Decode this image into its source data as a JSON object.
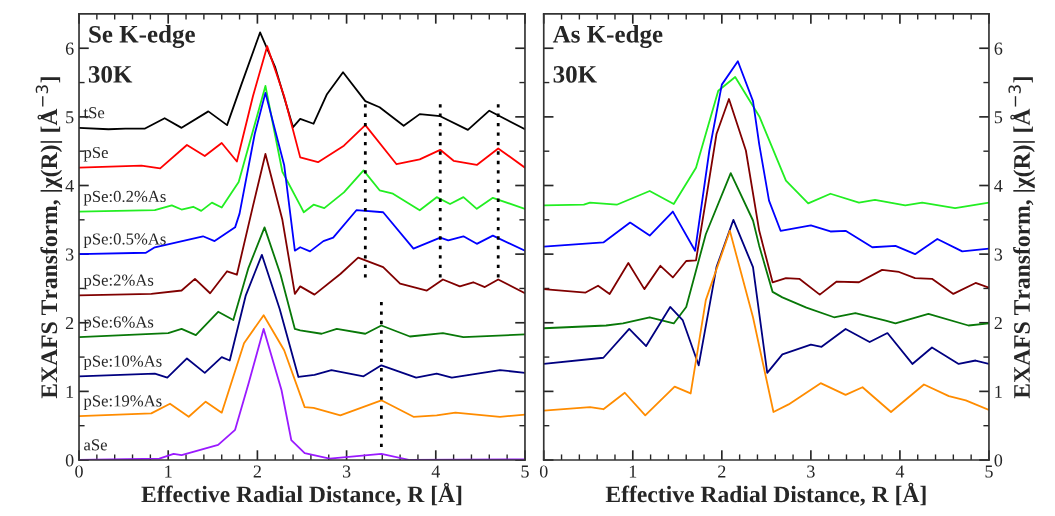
{
  "chart_data": [
    {
      "type": "line",
      "title": "Se K-edge",
      "subtitle": "30K",
      "xlabel": "Effective Radial Distance, R [Å]",
      "ylabel": "EXAFS Transform, |χ(R)| [Å$^{−3}$]",
      "xlim": [
        0,
        5
      ],
      "xticks": [
        0,
        {
          "value": 0.2,
          "label": null
        },
        {
          "value": 0.4,
          "label": null
        },
        {
          "value": 0.6,
          "label": null
        },
        {
          "value": 0.8,
          "label": null
        },
        1,
        {
          "value": 1.2,
          "label": null
        },
        {
          "value": 1.4,
          "label": null
        },
        {
          "value": 1.6,
          "label": null
        },
        {
          "value": 1.8,
          "label": null
        },
        2,
        {
          "value": 2.2,
          "label": null
        },
        {
          "value": 2.4,
          "label": null
        },
        {
          "value": 2.6,
          "label": null
        },
        {
          "value": 2.8,
          "label": null
        },
        3,
        {
          "value": 3.2,
          "label": null
        },
        {
          "value": 3.4,
          "label": null
        },
        {
          "value": 3.6,
          "label": null
        },
        {
          "value": 3.8,
          "label": null
        },
        4,
        {
          "value": 4.2,
          "label": null
        },
        {
          "value": 4.4,
          "label": null
        },
        {
          "value": 4.6,
          "label": null
        },
        {
          "value": 4.8,
          "label": null
        },
        5
      ],
      "ylim": [
        0,
        6.5
      ],
      "yticks": [
        0,
        {
          "value": 0.5,
          "label": null
        },
        1,
        {
          "value": 1.5,
          "label": null
        },
        2,
        {
          "value": 2.5,
          "label": null
        },
        3,
        {
          "value": 3.5,
          "label": null
        },
        4,
        {
          "value": 4.5,
          "label": null
        },
        5,
        {
          "value": 5.5,
          "label": null
        },
        6
      ],
      "marker": "none",
      "line_style": "solid",
      "series": [
        {
          "name": "tSe",
          "color": "#000000",
          "x": [
            0,
            0.33,
            0.52,
            0.74,
            0.96,
            1.15,
            1.45,
            1.66,
            1.82,
            2.03,
            2.2,
            2.4,
            2.48,
            2.63,
            2.78,
            2.96,
            3.21,
            3.37,
            3.64,
            3.82,
            4.05,
            4.36,
            4.6,
            5.0
          ],
          "values": [
            4.84,
            4.82,
            4.83,
            4.83,
            4.98,
            4.84,
            5.08,
            4.88,
            5.47,
            6.23,
            5.72,
            4.85,
            4.97,
            4.9,
            5.33,
            5.65,
            5.23,
            5.14,
            4.87,
            5.04,
            5.01,
            4.81,
            5.09,
            4.82
          ]
        },
        {
          "name": "pSe",
          "color": "#ff0000",
          "x": [
            0,
            0.7,
            0.91,
            1.21,
            1.41,
            1.6,
            1.77,
            1.95,
            2.11,
            2.3,
            2.48,
            2.68,
            2.97,
            3.21,
            3.56,
            3.82,
            4.05,
            4.2,
            4.46,
            4.7,
            5.0
          ],
          "values": [
            4.26,
            4.29,
            4.25,
            4.59,
            4.43,
            4.62,
            4.35,
            5.3,
            6.03,
            5.3,
            4.41,
            4.34,
            4.58,
            4.88,
            4.31,
            4.38,
            4.52,
            4.36,
            4.3,
            4.54,
            4.26
          ]
        },
        {
          "name": "pSe:0.2%As",
          "color": "#22ee22",
          "x": [
            0,
            0.85,
            1.04,
            1.15,
            1.28,
            1.37,
            1.49,
            1.6,
            1.79,
            2.09,
            2.28,
            2.48,
            2.52,
            2.63,
            2.75,
            2.97,
            3.19,
            3.37,
            3.52,
            3.82,
            4.01,
            4.16,
            4.31,
            4.46,
            4.64,
            5.0
          ],
          "values": [
            3.62,
            3.64,
            3.71,
            3.65,
            3.69,
            3.63,
            3.75,
            3.68,
            4.05,
            5.45,
            4.2,
            3.71,
            3.61,
            3.72,
            3.67,
            3.9,
            4.22,
            3.93,
            3.88,
            3.64,
            3.83,
            3.73,
            3.83,
            3.66,
            3.82,
            3.66
          ]
        },
        {
          "name": "pSe:0.5%As",
          "color": "#0000ff",
          "x": [
            0,
            0.75,
            0.85,
            1.39,
            1.52,
            1.75,
            1.8,
            1.97,
            2.09,
            2.3,
            2.42,
            2.48,
            2.59,
            2.74,
            2.85,
            3.11,
            3.41,
            3.75,
            4.05,
            4.14,
            4.31,
            4.46,
            4.64,
            5.0
          ],
          "values": [
            3.0,
            3.02,
            3.1,
            3.26,
            3.19,
            3.39,
            3.59,
            4.75,
            5.35,
            4.3,
            3.05,
            3.1,
            3.04,
            3.19,
            3.24,
            3.64,
            3.61,
            3.08,
            3.24,
            3.2,
            3.26,
            3.15,
            3.27,
            3.05
          ]
        },
        {
          "name": "pSe:2%As",
          "color": "#800000",
          "x": [
            0,
            0.81,
            1.15,
            1.3,
            1.47,
            1.66,
            1.77,
            1.95,
            2.09,
            2.28,
            2.42,
            2.48,
            2.64,
            2.93,
            3.13,
            3.41,
            3.6,
            3.9,
            4.08,
            4.27,
            4.42,
            4.55,
            4.7,
            5.0
          ],
          "values": [
            2.4,
            2.42,
            2.47,
            2.64,
            2.43,
            2.75,
            2.7,
            3.7,
            4.46,
            3.5,
            2.42,
            2.53,
            2.41,
            2.71,
            2.95,
            2.81,
            2.57,
            2.47,
            2.63,
            2.53,
            2.59,
            2.52,
            2.63,
            2.43
          ]
        },
        {
          "name": "pSe:6%As",
          "color": "#087808",
          "x": [
            0,
            1.0,
            1.15,
            1.31,
            1.56,
            1.73,
            1.9,
            2.08,
            2.26,
            2.42,
            2.48,
            2.72,
            2.89,
            3.21,
            3.39,
            3.71,
            4.08,
            4.31,
            5.0
          ],
          "values": [
            1.79,
            1.85,
            1.91,
            1.82,
            2.16,
            2.04,
            2.8,
            3.39,
            2.7,
            1.91,
            1.89,
            1.84,
            1.91,
            1.84,
            1.96,
            1.8,
            1.85,
            1.79,
            1.83
          ]
        },
        {
          "name": "pSe:10%As",
          "color": "#000080",
          "x": [
            0,
            0.85,
            0.99,
            1.21,
            1.41,
            1.6,
            1.69,
            1.87,
            2.05,
            2.25,
            2.46,
            2.64,
            2.83,
            3.19,
            3.39,
            3.78,
            4.01,
            4.18,
            4.72,
            5.0
          ],
          "values": [
            1.22,
            1.26,
            1.2,
            1.48,
            1.27,
            1.5,
            1.45,
            2.4,
            2.99,
            2.2,
            1.21,
            1.24,
            1.31,
            1.22,
            1.38,
            1.2,
            1.26,
            1.2,
            1.31,
            1.27
          ]
        },
        {
          "name": "pSe:19%As",
          "color": "#ff8c00",
          "x": [
            0,
            0.81,
            1.02,
            1.23,
            1.42,
            1.6,
            1.85,
            2.07,
            2.3,
            2.53,
            2.63,
            2.93,
            3.39,
            3.75,
            4.01,
            4.22,
            4.72,
            5.0
          ],
          "values": [
            0.64,
            0.68,
            0.82,
            0.63,
            0.85,
            0.69,
            1.7,
            2.11,
            1.6,
            0.77,
            0.76,
            0.65,
            0.87,
            0.63,
            0.65,
            0.69,
            0.63,
            0.66
          ]
        },
        {
          "name": "aSe",
          "color": "#9a1aff",
          "x": [
            0,
            0.9,
            1.06,
            1.15,
            1.28,
            1.56,
            1.75,
            1.9,
            2.07,
            2.27,
            2.38,
            2.53,
            2.81,
            3.39,
            3.71,
            5.0
          ],
          "values": [
            0.0,
            0.02,
            0.09,
            0.07,
            0.12,
            0.22,
            0.44,
            1.11,
            1.91,
            1.02,
            0.29,
            0.1,
            0.02,
            0.09,
            0.0,
            0.01
          ]
        },
        {
          "color": "#000000",
          "line_style": "dotted",
          "x": [
            3.21,
            3.21
          ],
          "values": [
            2.66,
            5.23
          ]
        },
        {
          "color": "#000000",
          "line_style": "dotted",
          "x": [
            4.05,
            4.05
          ],
          "values": [
            2.66,
            5.23
          ]
        },
        {
          "color": "#000000",
          "line_style": "dotted",
          "x": [
            4.7,
            4.7
          ],
          "values": [
            2.66,
            5.23
          ]
        },
        {
          "color": "#000000",
          "line_style": "dotted",
          "x": [
            3.39,
            3.39
          ],
          "values": [
            0.19,
            2.35
          ]
        }
      ]
    },
    {
      "type": "line",
      "title": "As K-edge",
      "subtitle": "30K",
      "xlabel": "Effective Radial Distance, R [Å]",
      "y2label": "EXAFS Transform, |χ(R)| [Å$^{−3}$]",
      "xlim": [
        0,
        5
      ],
      "xticks": [
        0,
        {
          "value": 0.2,
          "label": null
        },
        {
          "value": 0.4,
          "label": null
        },
        {
          "value": 0.6,
          "label": null
        },
        {
          "value": 0.8,
          "label": null
        },
        1,
        {
          "value": 1.2,
          "label": null
        },
        {
          "value": 1.4,
          "label": null
        },
        {
          "value": 1.6,
          "label": null
        },
        {
          "value": 1.8,
          "label": null
        },
        2,
        {
          "value": 2.2,
          "label": null
        },
        {
          "value": 2.4,
          "label": null
        },
        {
          "value": 2.6,
          "label": null
        },
        {
          "value": 2.8,
          "label": null
        },
        3,
        {
          "value": 3.2,
          "label": null
        },
        {
          "value": 3.4,
          "label": null
        },
        {
          "value": 3.6,
          "label": null
        },
        {
          "value": 3.8,
          "label": null
        },
        4,
        {
          "value": 4.2,
          "label": null
        },
        {
          "value": 4.4,
          "label": null
        },
        {
          "value": 4.6,
          "label": null
        },
        {
          "value": 4.8,
          "label": null
        },
        5
      ],
      "y2lim": [
        0,
        6.5
      ],
      "y2ticks": [
        0,
        {
          "value": 0.5,
          "label": null
        },
        1,
        {
          "value": 1.5,
          "label": null
        },
        2,
        {
          "value": 2.5,
          "label": null
        },
        3,
        {
          "value": 3.5,
          "label": null
        },
        4,
        {
          "value": 4.5,
          "label": null
        },
        5,
        {
          "value": 5.5,
          "label": null
        },
        6
      ],
      "marker": "none",
      "line_style": "solid",
      "series": [
        {
          "color": "#22ee22",
          "axis": "y2",
          "x": [
            0,
            0.45,
            0.52,
            0.82,
            1.19,
            1.46,
            1.71,
            1.96,
            2.15,
            2.42,
            2.72,
            2.97,
            3.22,
            3.54,
            3.72,
            4.06,
            4.25,
            4.62,
            5.0
          ],
          "values": [
            3.71,
            3.72,
            3.75,
            3.72,
            3.92,
            3.73,
            4.26,
            5.38,
            5.58,
            5.01,
            4.07,
            3.74,
            3.88,
            3.75,
            3.79,
            3.71,
            3.75,
            3.67,
            3.75
          ]
        },
        {
          "color": "#0000ff",
          "axis": "y2",
          "x": [
            0,
            0.67,
            0.97,
            1.19,
            1.45,
            1.7,
            1.86,
            2.0,
            2.18,
            2.35,
            2.42,
            2.53,
            2.66,
            3.0,
            3.22,
            3.39,
            3.69,
            3.95,
            4.17,
            4.42,
            4.7,
            5.0
          ],
          "values": [
            3.11,
            3.17,
            3.46,
            3.27,
            3.62,
            3.05,
            4.51,
            5.47,
            5.81,
            5.23,
            4.6,
            3.78,
            3.34,
            3.42,
            3.33,
            3.34,
            3.1,
            3.12,
            3.0,
            3.22,
            3.04,
            3.08
          ]
        },
        {
          "color": "#800000",
          "axis": "y2",
          "x": [
            0,
            0.47,
            0.61,
            0.74,
            0.95,
            1.13,
            1.31,
            1.45,
            1.6,
            1.71,
            1.82,
            1.94,
            2.08,
            2.27,
            2.42,
            2.57,
            2.72,
            2.87,
            3.1,
            3.29,
            3.54,
            3.8,
            3.99,
            4.17,
            4.36,
            4.6,
            4.85,
            5.0
          ],
          "values": [
            2.49,
            2.44,
            2.54,
            2.42,
            2.87,
            2.49,
            2.83,
            2.66,
            2.9,
            2.91,
            3.78,
            4.75,
            5.26,
            4.51,
            3.34,
            2.59,
            2.65,
            2.64,
            2.41,
            2.6,
            2.59,
            2.77,
            2.74,
            2.65,
            2.64,
            2.42,
            2.58,
            2.51
          ]
        },
        {
          "color": "#087808",
          "axis": "y2",
          "x": [
            0,
            0.7,
            0.89,
            1.19,
            1.46,
            1.6,
            1.82,
            2.1,
            2.35,
            2.42,
            2.57,
            2.68,
            2.95,
            3.26,
            3.5,
            3.84,
            3.95,
            4.32,
            4.77,
            5.0
          ],
          "values": [
            1.92,
            1.96,
            1.99,
            2.08,
            1.99,
            2.23,
            3.29,
            4.18,
            3.49,
            3.12,
            2.45,
            2.37,
            2.22,
            2.08,
            2.14,
            2.03,
            1.99,
            2.13,
            1.96,
            1.99
          ]
        },
        {
          "color": "#000080",
          "axis": "y2",
          "x": [
            0,
            0.67,
            0.96,
            1.15,
            1.42,
            1.56,
            1.74,
            1.94,
            2.13,
            2.35,
            2.51,
            2.68,
            3.0,
            3.12,
            3.39,
            3.66,
            3.86,
            4.14,
            4.36,
            4.66,
            4.85,
            5.0
          ],
          "values": [
            1.4,
            1.49,
            1.91,
            1.66,
            2.23,
            2.04,
            1.38,
            2.81,
            3.5,
            2.81,
            1.27,
            1.54,
            1.68,
            1.65,
            1.91,
            1.72,
            1.85,
            1.4,
            1.64,
            1.4,
            1.45,
            1.4
          ]
        },
        {
          "color": "#ff8c00",
          "axis": "y2",
          "x": [
            0,
            0.52,
            0.67,
            0.91,
            1.14,
            1.47,
            1.65,
            1.82,
            2.09,
            2.35,
            2.58,
            2.75,
            3.11,
            3.39,
            3.58,
            3.9,
            4.27,
            4.55,
            4.74,
            5.0
          ],
          "values": [
            0.72,
            0.77,
            0.74,
            0.98,
            0.65,
            1.07,
            0.97,
            2.33,
            3.34,
            2.08,
            0.7,
            0.81,
            1.12,
            0.95,
            1.06,
            0.7,
            1.1,
            0.93,
            0.87,
            0.73
          ]
        }
      ]
    }
  ]
}
